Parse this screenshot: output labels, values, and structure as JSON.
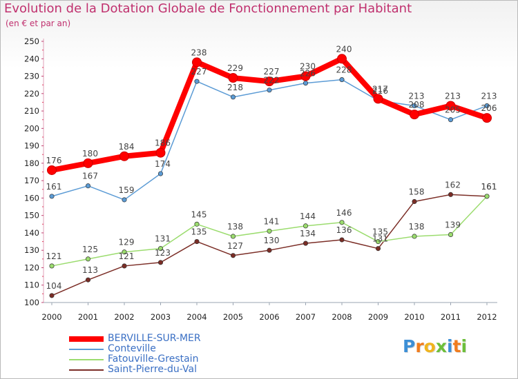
{
  "chart_data": {
    "type": "line",
    "title": "Evolution de la Dotation Globale de Fonctionnement par Habitant",
    "subtitle": "(en € et par an)",
    "x": [
      "2000",
      "2001",
      "2002",
      "2003",
      "2004",
      "2005",
      "2006",
      "2007",
      "2008",
      "2009",
      "2010",
      "2011",
      "2012"
    ],
    "ylim": [
      100,
      250
    ],
    "yticks": [
      100,
      110,
      120,
      130,
      140,
      150,
      160,
      170,
      180,
      190,
      200,
      210,
      220,
      230,
      240,
      250
    ],
    "grid": false,
    "legend_position": "bottom-left",
    "series": [
      {
        "name": "BERVILLE-SUR-MER",
        "color": "#ff0000",
        "values": [
          176,
          180,
          184,
          186,
          238,
          229,
          227,
          230,
          240,
          217,
          208,
          213,
          206
        ]
      },
      {
        "name": "Conteville",
        "color": "#5b9bd5",
        "values": [
          161,
          167,
          159,
          174,
          227,
          218,
          222,
          226,
          228,
          216,
          213,
          205,
          213
        ]
      },
      {
        "name": "Fatouville-Grestain",
        "color": "#9bdc6e",
        "values": [
          121,
          125,
          129,
          131,
          145,
          138,
          141,
          144,
          146,
          135,
          138,
          139,
          161
        ]
      },
      {
        "name": "Saint-Pierre-du-Val",
        "color": "#7b2d26",
        "values": [
          104,
          113,
          121,
          123,
          135,
          127,
          130,
          134,
          136,
          131,
          158,
          162,
          161
        ]
      }
    ],
    "data_labels": {
      "BERVILLE-SUR-MER": [
        "176",
        "180",
        "184",
        "186",
        "238",
        "229",
        "227",
        "230",
        "240",
        "217",
        "208",
        "213",
        "206"
      ],
      "Conteville": [
        "161",
        "167",
        "159",
        "174",
        "227",
        "218",
        "222",
        "226",
        "228",
        "216",
        "213",
        "205",
        "213"
      ],
      "Fatouville-Grestain": [
        "121",
        "125",
        "129",
        "131",
        "145",
        "138",
        "141",
        "144",
        "146",
        "135",
        "138",
        "139",
        "161"
      ],
      "Saint-Pierre-du-Val": [
        "104",
        "113",
        "121",
        "123",
        "135",
        "127",
        "130",
        "134",
        "136",
        "131",
        "158",
        "162",
        "161"
      ]
    }
  },
  "branding": {
    "logo_text": "Proxiti",
    "letters": [
      {
        "ch": "P",
        "color": "#3d8fd6"
      },
      {
        "ch": "r",
        "color": "#f07c1e"
      },
      {
        "ch": "o",
        "color": "#f0b41e"
      },
      {
        "ch": "x",
        "color": "#6cbf3a"
      },
      {
        "ch": "i",
        "color": "#3d8fd6"
      },
      {
        "ch": "t",
        "color": "#f07c1e"
      },
      {
        "ch": "i",
        "color": "#6cbf3a"
      }
    ]
  }
}
